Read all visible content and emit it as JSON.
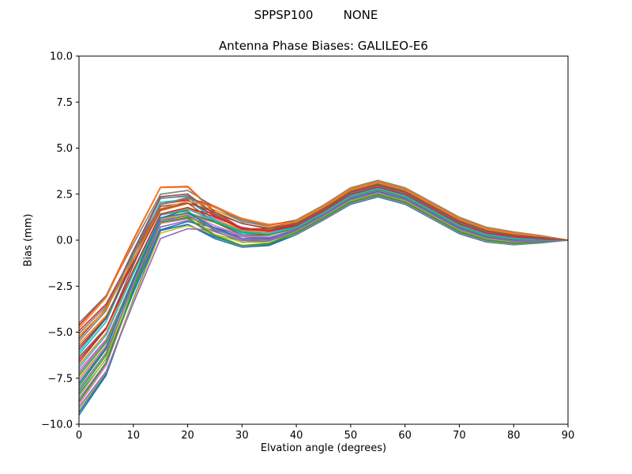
{
  "figure": {
    "background": "#ffffff",
    "text_color": "#000000"
  },
  "chart_data": {
    "type": "line",
    "suptitle": "SPPSP100        NONE",
    "title": "Antenna Phase Biases: GALILEO-E6",
    "xlabel": "Elvation angle (degrees)",
    "ylabel": "Bias (mm)",
    "xlim": [
      0,
      90
    ],
    "ylim": [
      -10,
      10
    ],
    "grid": false,
    "legend": false,
    "xtick_values": [
      0,
      10,
      20,
      30,
      40,
      50,
      60,
      70,
      80,
      90
    ],
    "xtick_labels": [
      "0",
      "10",
      "20",
      "30",
      "40",
      "50",
      "60",
      "70",
      "80",
      "90"
    ],
    "ytick_values": [
      -10,
      -7.5,
      -5,
      -2.5,
      0,
      2.5,
      5,
      7.5,
      10
    ],
    "ytick_labels": [
      "−10.0",
      "−7.5",
      "−5.0",
      "−2.5",
      "0.0",
      "2.5",
      "5.0",
      "7.5",
      "10.0"
    ],
    "x": [
      0,
      5,
      10,
      15,
      20,
      25,
      30,
      35,
      40,
      45,
      50,
      55,
      60,
      65,
      70,
      75,
      80,
      85,
      90
    ],
    "ensemble": {
      "note": "Dense bundle of per-satellite bias curves; series i = base + offsets[i]*half_width + skew_coeffs[i]*skew, evaluated at x",
      "base": [
        -7.0,
        -5.2,
        -1.8,
        1.4,
        1.7,
        1.0,
        0.4,
        0.3,
        0.7,
        1.5,
        2.4,
        2.8,
        2.4,
        1.6,
        0.8,
        0.3,
        0.1,
        0.05,
        0.0
      ],
      "half_width": [
        2.5,
        2.2,
        1.6,
        1.1,
        1.0,
        0.8,
        0.6,
        0.5,
        0.4,
        0.4,
        0.45,
        0.45,
        0.45,
        0.45,
        0.45,
        0.4,
        0.35,
        0.2,
        0.0
      ],
      "skew": [
        0,
        0.2,
        0.6,
        0.8,
        0.5,
        -0.4,
        -0.6,
        -0.3,
        0,
        0,
        0,
        0,
        0,
        0,
        0,
        0,
        0,
        0,
        0
      ],
      "offsets": [
        -1.0,
        0.543,
        -0.486,
        0.943,
        -0.086,
        0.257,
        -0.771,
        1.0,
        -0.2,
        0.371,
        -0.943,
        0.086,
        -0.371,
        0.829,
        -0.657,
        0.143,
        -0.029,
        0.6,
        -0.886,
        0.314,
        -0.543,
        0.886,
        -0.143,
        0.429,
        -0.829,
        0.657,
        -0.257,
        0.771,
        -0.6,
        0.029,
        -0.314,
        0.714,
        -0.714,
        0.2,
        -0.429,
        0.486
      ],
      "skew_coeffs": [
        0.3,
        -0.5,
        0.1,
        0.55,
        -0.25,
        -0.6,
        0.45,
        0.0,
        -0.35,
        0.6,
        0.2,
        -0.15,
        0.5,
        -0.45,
        0.05,
        0.35,
        -0.55,
        0.25,
        -0.05,
        0.4,
        -0.3,
        0.6,
        -0.2,
        0.1,
        -0.5,
        0.3,
        0.0,
        -0.4,
        0.55,
        -0.1,
        0.2,
        -0.6,
        0.45,
        -0.25,
        0.15,
        -0.35
      ]
    },
    "palette": [
      "#1f77b4",
      "#ff7f0e",
      "#2ca02c",
      "#d62728",
      "#9467bd",
      "#8c564b",
      "#e377c2",
      "#7f7f7f",
      "#bcbd22",
      "#17becf"
    ],
    "line_width": 1.6
  }
}
